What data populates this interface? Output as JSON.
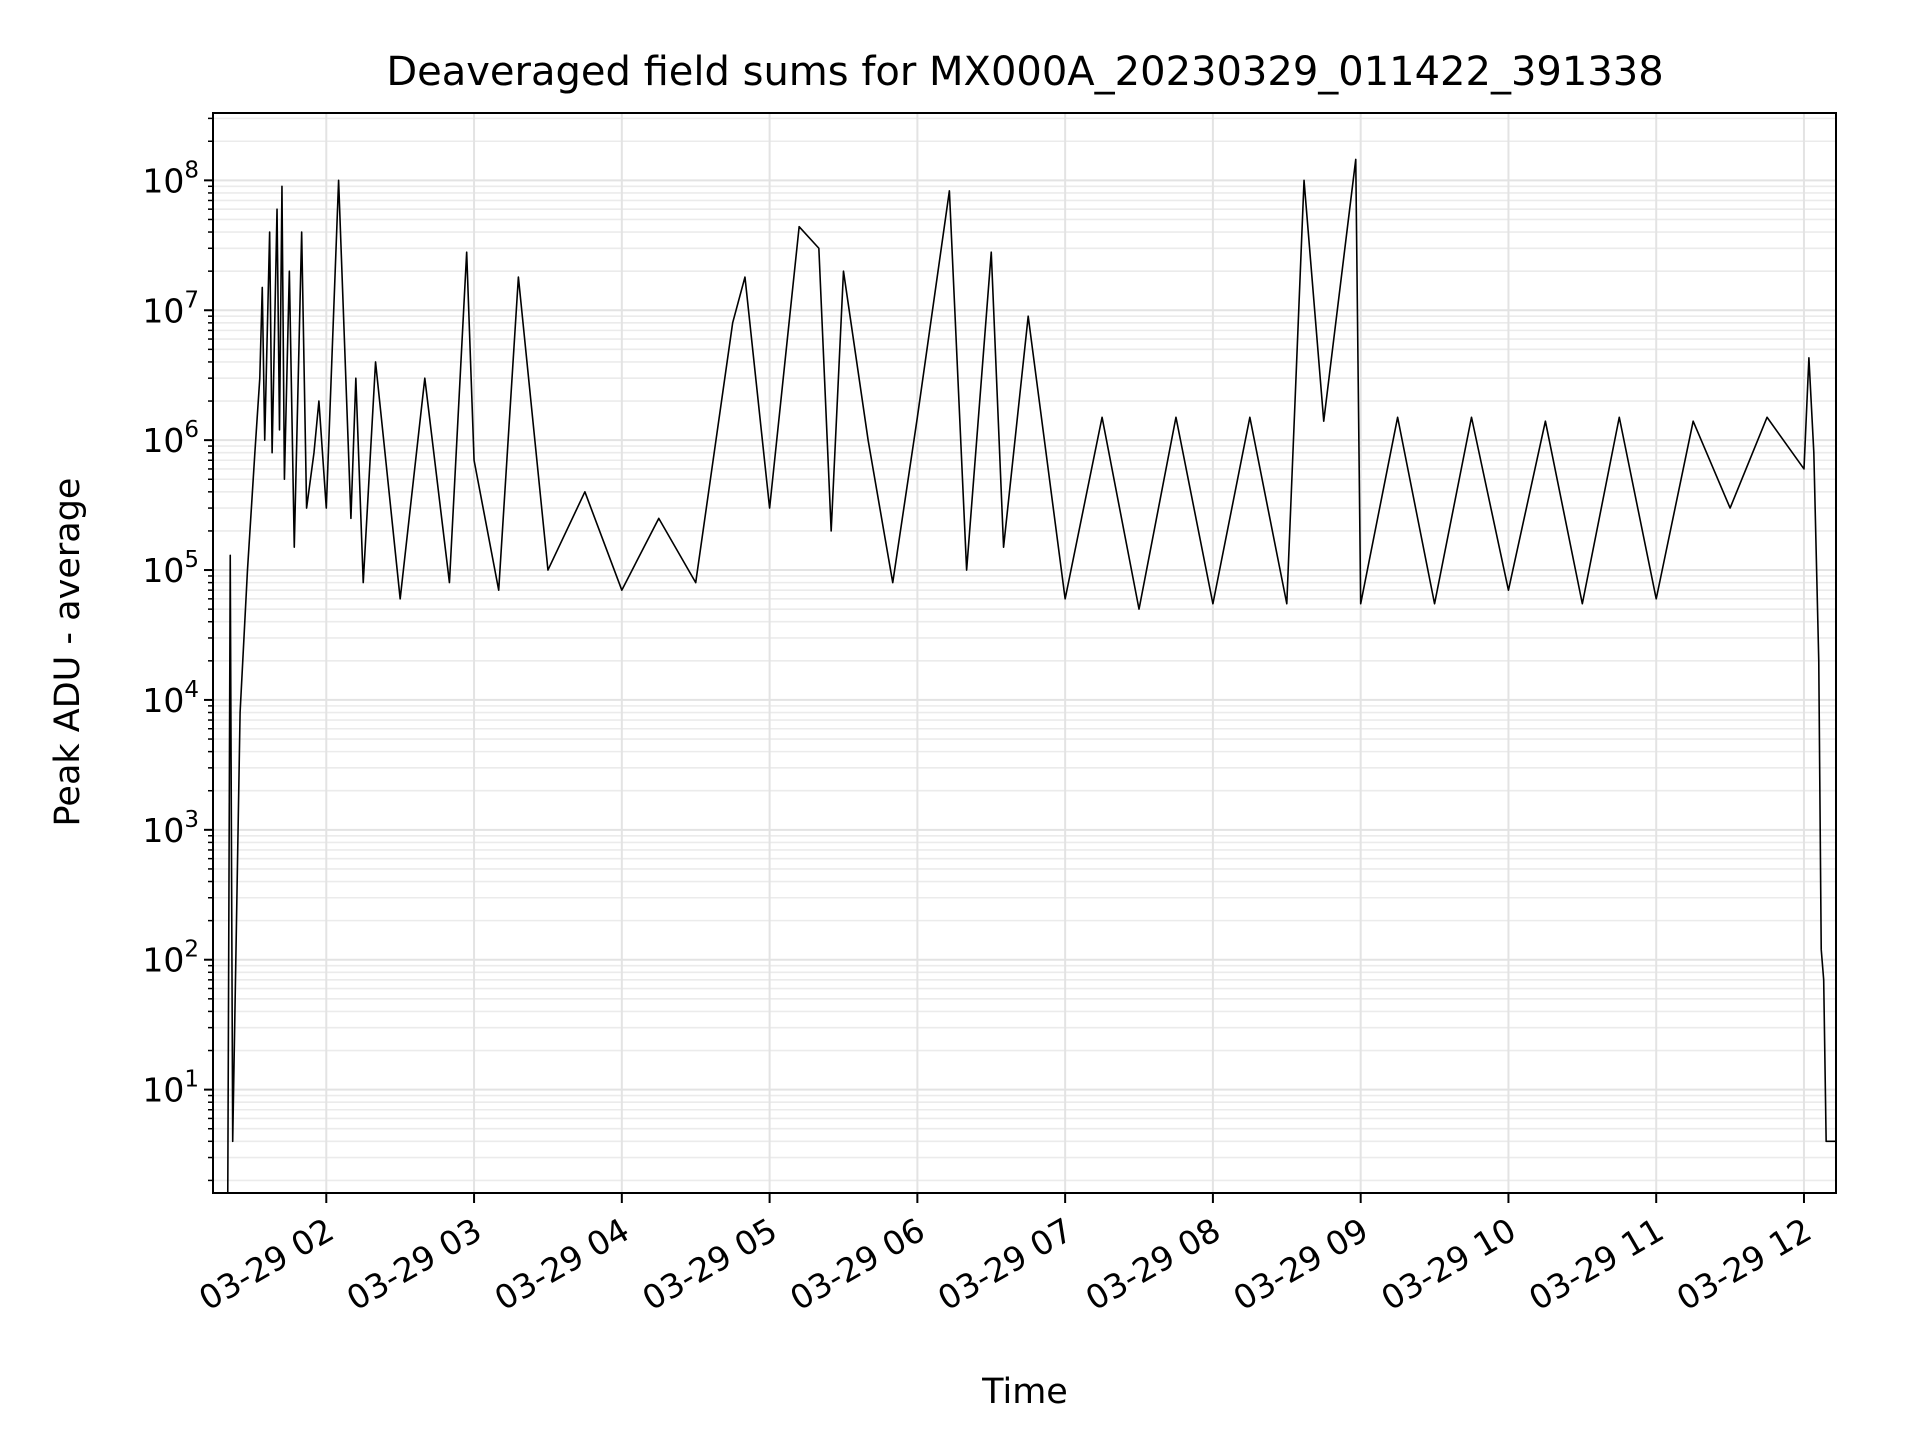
{
  "chart_data": {
    "type": "line",
    "title": "Deaveraged field sums for MX000A_20230329_011422_391338",
    "xlabel": "Time",
    "ylabel": "Peak ADU - average",
    "yscale": "log",
    "ylim": [
      1.6,
      330000000
    ],
    "xlim": [
      "2023-03-29 01:14",
      "2023-03-29 12:13"
    ],
    "grid": true,
    "line_color": "#000000",
    "x_ticks": [
      {
        "value": "2023-03-29 02:00",
        "label": "03-29 02"
      },
      {
        "value": "2023-03-29 03:00",
        "label": "03-29 03"
      },
      {
        "value": "2023-03-29 04:00",
        "label": "03-29 04"
      },
      {
        "value": "2023-03-29 05:00",
        "label": "03-29 05"
      },
      {
        "value": "2023-03-29 06:00",
        "label": "03-29 06"
      },
      {
        "value": "2023-03-29 07:00",
        "label": "03-29 07"
      },
      {
        "value": "2023-03-29 08:00",
        "label": "03-29 08"
      },
      {
        "value": "2023-03-29 09:00",
        "label": "03-29 09"
      },
      {
        "value": "2023-03-29 10:00",
        "label": "03-29 10"
      },
      {
        "value": "2023-03-29 11:00",
        "label": "03-29 11"
      },
      {
        "value": "2023-03-29 12:00",
        "label": "03-29 12"
      }
    ],
    "y_ticks": [
      {
        "value": 10,
        "base": "10",
        "exp": "1"
      },
      {
        "value": 100,
        "base": "10",
        "exp": "2"
      },
      {
        "value": 1000,
        "base": "10",
        "exp": "3"
      },
      {
        "value": 10000,
        "base": "10",
        "exp": "4"
      },
      {
        "value": 100000,
        "base": "10",
        "exp": "5"
      },
      {
        "value": 1000000,
        "base": "10",
        "exp": "6"
      },
      {
        "value": 10000000,
        "base": "10",
        "exp": "7"
      },
      {
        "value": 100000000,
        "base": "10",
        "exp": "8"
      }
    ],
    "series": [
      {
        "x": [
          "2023-03-29 01:20",
          "2023-03-29 01:21",
          "2023-03-29 01:22",
          "2023-03-29 01:25",
          "2023-03-29 01:28",
          "2023-03-29 01:31",
          "2023-03-29 01:33",
          "2023-03-29 01:34",
          "2023-03-29 01:35",
          "2023-03-29 01:37",
          "2023-03-29 01:38",
          "2023-03-29 01:40",
          "2023-03-29 01:41",
          "2023-03-29 01:42",
          "2023-03-29 01:43",
          "2023-03-29 01:45",
          "2023-03-29 01:47",
          "2023-03-29 01:50",
          "2023-03-29 01:52",
          "2023-03-29 01:55",
          "2023-03-29 01:57",
          "2023-03-29 02:00",
          "2023-03-29 02:05",
          "2023-03-29 02:10",
          "2023-03-29 02:12",
          "2023-03-29 02:15",
          "2023-03-29 02:20",
          "2023-03-29 02:30",
          "2023-03-29 02:40",
          "2023-03-29 02:50",
          "2023-03-29 02:57",
          "2023-03-29 03:00",
          "2023-03-29 03:10",
          "2023-03-29 03:18",
          "2023-03-29 03:30",
          "2023-03-29 03:45",
          "2023-03-29 04:00",
          "2023-03-29 04:15",
          "2023-03-29 04:30",
          "2023-03-29 04:45",
          "2023-03-29 04:50",
          "2023-03-29 05:00",
          "2023-03-29 05:12",
          "2023-03-29 05:20",
          "2023-03-29 05:25",
          "2023-03-29 05:30",
          "2023-03-29 05:40",
          "2023-03-29 05:50",
          "2023-03-29 06:00",
          "2023-03-29 06:13",
          "2023-03-29 06:20",
          "2023-03-29 06:30",
          "2023-03-29 06:35",
          "2023-03-29 06:45",
          "2023-03-29 07:00",
          "2023-03-29 07:15",
          "2023-03-29 07:30",
          "2023-03-29 07:45",
          "2023-03-29 08:00",
          "2023-03-29 08:15",
          "2023-03-29 08:30",
          "2023-03-29 08:37",
          "2023-03-29 08:45",
          "2023-03-29 08:58",
          "2023-03-29 09:00",
          "2023-03-29 09:15",
          "2023-03-29 09:30",
          "2023-03-29 09:45",
          "2023-03-29 10:00",
          "2023-03-29 10:15",
          "2023-03-29 10:30",
          "2023-03-29 10:45",
          "2023-03-29 11:00",
          "2023-03-29 11:15",
          "2023-03-29 11:30",
          "2023-03-29 11:45",
          "2023-03-29 12:00",
          "2023-03-29 12:02",
          "2023-03-29 12:04",
          "2023-03-29 12:06",
          "2023-03-29 12:07",
          "2023-03-29 12:08",
          "2023-03-29 12:09",
          "2023-03-29 12:13"
        ],
        "y": [
          1.6,
          130000,
          4,
          8000,
          100000,
          800000,
          3000000,
          15000000,
          1000000,
          40000000,
          800000,
          60000000,
          1200000,
          90000000,
          500000,
          20000000,
          150000,
          40000000,
          300000,
          800000,
          2000000,
          300000,
          100000000,
          250000,
          3000000,
          80000,
          4000000,
          60000,
          3000000,
          80000,
          28000000,
          700000,
          70000,
          18000000,
          100000,
          400000,
          70000,
          250000,
          80000,
          8000000,
          18000000,
          300000,
          44000000,
          30000000,
          200000,
          20000000,
          1000000,
          80000,
          1500000,
          83000000,
          100000,
          28000000,
          150000,
          9000000,
          60000,
          1500000,
          50000,
          1500000,
          55000,
          1500000,
          55000,
          100000000,
          1400000,
          145000000,
          55000,
          1500000,
          55000,
          1500000,
          70000,
          1400000,
          55000,
          1500000,
          60000,
          1400000,
          300000,
          1500000,
          600000,
          4300000,
          800000,
          20000,
          120,
          70,
          4,
          4
        ]
      }
    ]
  }
}
